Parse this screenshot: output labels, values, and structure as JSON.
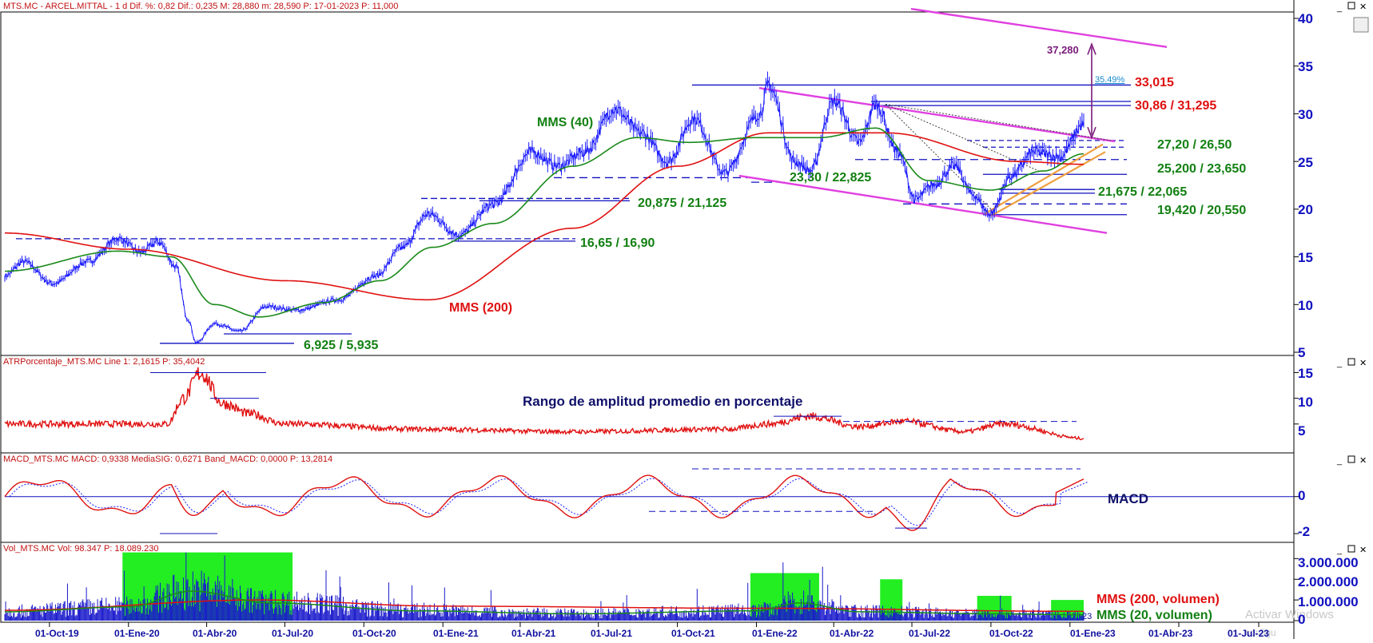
{
  "panels": {
    "price": {
      "header": "MTS.MC - ARCEL.MITTAL -  1 d  Dif. %: 0,82  Dif.: 0,235  M: 28,880  m: 28,590  P: 17-01-2023  P: 11,000",
      "y_ticks": [
        "40",
        "35",
        "30",
        "25",
        "20",
        "15",
        "10",
        "5"
      ],
      "labels": {
        "mms40": "MMS (40)",
        "mms200": "MMS (200)",
        "target_value": "37,280",
        "target_pct": "35.49%",
        "levels": [
          "33,015",
          "30,86 / 31,295",
          "27,20 / 26,50",
          "25,200 / 23,650",
          "21,675 / 22,065",
          "19,420 / 20,550",
          "23,30 / 22,825",
          "20,875 / 21,125",
          "16,65 / 16,90",
          "6,925 / 5,935"
        ]
      }
    },
    "atr": {
      "header": "ATRPorcentaje_MTS.MC  Line 1: 2,1615  P: 35,4042",
      "y_ticks": [
        "15",
        "10",
        "5"
      ],
      "title": "Rango de amplitud promedio en porcentaje"
    },
    "macd": {
      "header": "MACD_MTS.MC  MACD: 0,9338  MediaSIG: 0,6271  Band_MACD: 0,0000  P: 13,2814",
      "y_ticks": [
        "0",
        "-2"
      ],
      "title": "MACD"
    },
    "volume": {
      "header": "Vol_MTS.MC  Vol: 98.347  P: 18.089.230",
      "y_ticks": [
        "3.000.000",
        "2.000.000",
        "1.000.000",
        "0"
      ],
      "legend_200": "MMS (200, volumen)",
      "legend_20": "MMS (20, volumen)",
      "corner_text": "23"
    }
  },
  "x_ticks": [
    "01-Oct-19",
    "01-Ene-20",
    "01-Abr-20",
    "01-Jul-20",
    "01-Oct-20",
    "01-Ene-21",
    "01-Abr-21",
    "01-Jul-21",
    "01-Oct-21",
    "01-Ene-22",
    "01-Abr-22",
    "01-Jul-22",
    "01-Oct-22",
    "01-Ene-23",
    "01-Abr-23",
    "01-Jul-23"
  ],
  "watermark": {
    "line1": "Activar Windows",
    "line2": "configu"
  },
  "colors": {
    "price": "#1a1aff",
    "mms40": "#1a8a1a",
    "mms200": "#e01010",
    "channel": "#e040e0",
    "support": "#1010c0",
    "green_label": "#128012",
    "red_label": "#e01010",
    "volume_highlight": "#22ee22"
  },
  "chart_data": {
    "type": "line",
    "title": "",
    "series": [
      {
        "name": "MMS (40)",
        "values": []
      },
      {
        "name": "MMS (200)",
        "values": []
      }
    ],
    "price_anchors": [
      {
        "date": "2019-08-10",
        "value": 13.0
      },
      {
        "date": "2019-09-01",
        "value": 14.5
      },
      {
        "date": "2019-10-05",
        "value": 12.2
      },
      {
        "date": "2019-11-15",
        "value": 14.5
      },
      {
        "date": "2019-12-20",
        "value": 16.9
      },
      {
        "date": "2020-01-15",
        "value": 15.5
      },
      {
        "date": "2020-02-05",
        "value": 16.6
      },
      {
        "date": "2020-02-25",
        "value": 14.0
      },
      {
        "date": "2020-03-10",
        "value": 8.5
      },
      {
        "date": "2020-03-20",
        "value": 6.0
      },
      {
        "date": "2020-04-10",
        "value": 8.0
      },
      {
        "date": "2020-05-10",
        "value": 7.2
      },
      {
        "date": "2020-06-10",
        "value": 9.8
      },
      {
        "date": "2020-07-15",
        "value": 9.4
      },
      {
        "date": "2020-09-01",
        "value": 10.5
      },
      {
        "date": "2020-10-15",
        "value": 13.0
      },
      {
        "date": "2020-11-15",
        "value": 16.0
      },
      {
        "date": "2020-12-15",
        "value": 19.5
      },
      {
        "date": "2021-01-20",
        "value": 17.3
      },
      {
        "date": "2021-03-01",
        "value": 20.5
      },
      {
        "date": "2021-04-15",
        "value": 26.0
      },
      {
        "date": "2021-05-15",
        "value": 24.5
      },
      {
        "date": "2021-06-15",
        "value": 26.0
      },
      {
        "date": "2021-07-20",
        "value": 30.5
      },
      {
        "date": "2021-08-20",
        "value": 28.0
      },
      {
        "date": "2021-09-20",
        "value": 25.0
      },
      {
        "date": "2021-10-20",
        "value": 29.5
      },
      {
        "date": "2021-11-25",
        "value": 23.8
      },
      {
        "date": "2022-01-05",
        "value": 30.0
      },
      {
        "date": "2022-01-15",
        "value": 33.0
      },
      {
        "date": "2022-02-15",
        "value": 25.0
      },
      {
        "date": "2022-03-05",
        "value": 24.0
      },
      {
        "date": "2022-04-01",
        "value": 31.3
      },
      {
        "date": "2022-05-01",
        "value": 27.0
      },
      {
        "date": "2022-05-20",
        "value": 31.0
      },
      {
        "date": "2022-06-15",
        "value": 26.0
      },
      {
        "date": "2022-07-05",
        "value": 21.0
      },
      {
        "date": "2022-07-25",
        "value": 22.5
      },
      {
        "date": "2022-08-20",
        "value": 24.5
      },
      {
        "date": "2022-09-10",
        "value": 21.5
      },
      {
        "date": "2022-09-30",
        "value": 19.5
      },
      {
        "date": "2022-10-25",
        "value": 23.5
      },
      {
        "date": "2022-11-20",
        "value": 26.0
      },
      {
        "date": "2022-12-20",
        "value": 25.5
      },
      {
        "date": "2023-01-17",
        "value": 28.9
      }
    ],
    "mms40_anchors": [
      {
        "date": "2019-08-10",
        "value": 13.5
      },
      {
        "date": "2019-12-20",
        "value": 15.6
      },
      {
        "date": "2020-02-20",
        "value": 15.0
      },
      {
        "date": "2020-04-10",
        "value": 10.0
      },
      {
        "date": "2020-06-01",
        "value": 8.7
      },
      {
        "date": "2020-08-15",
        "value": 10.2
      },
      {
        "date": "2020-10-20",
        "value": 12.5
      },
      {
        "date": "2020-12-20",
        "value": 16.0
      },
      {
        "date": "2021-03-01",
        "value": 18.5
      },
      {
        "date": "2021-06-01",
        "value": 24.5
      },
      {
        "date": "2021-08-15",
        "value": 27.5
      },
      {
        "date": "2021-10-15",
        "value": 27.0
      },
      {
        "date": "2022-01-01",
        "value": 27.5
      },
      {
        "date": "2022-03-15",
        "value": 27.5
      },
      {
        "date": "2022-05-20",
        "value": 28.5
      },
      {
        "date": "2022-07-20",
        "value": 23.0
      },
      {
        "date": "2022-10-01",
        "value": 22.0
      },
      {
        "date": "2022-12-01",
        "value": 24.0
      },
      {
        "date": "2023-01-17",
        "value": 25.8
      }
    ],
    "mms200_anchors": [
      {
        "date": "2019-08-10",
        "value": 17.5
      },
      {
        "date": "2020-01-01",
        "value": 15.8
      },
      {
        "date": "2020-07-01",
        "value": 12.5
      },
      {
        "date": "2020-12-15",
        "value": 10.5
      },
      {
        "date": "2021-06-01",
        "value": 18.0
      },
      {
        "date": "2021-10-01",
        "value": 24.5
      },
      {
        "date": "2022-01-15",
        "value": 28.0
      },
      {
        "date": "2022-06-01",
        "value": 28.0
      },
      {
        "date": "2022-11-01",
        "value": 25.0
      },
      {
        "date": "2023-01-17",
        "value": 24.7
      }
    ],
    "levels": [
      {
        "label": "33,015",
        "values": [
          33.015
        ]
      },
      {
        "label": "30,86 / 31,295",
        "values": [
          30.86,
          31.295
        ]
      },
      {
        "label": "27,20 / 26,50",
        "values": [
          27.2,
          26.5
        ]
      },
      {
        "label": "25,200 / 23,650",
        "values": [
          25.2,
          23.65
        ]
      },
      {
        "label": "21,675 / 22,065",
        "values": [
          21.675,
          22.065
        ]
      },
      {
        "label": "19,420 / 20,550",
        "values": [
          19.42,
          20.55
        ]
      },
      {
        "label": "23,30 / 22,825",
        "values": [
          23.3,
          22.825
        ]
      },
      {
        "label": "20,875 / 21,125",
        "values": [
          20.875,
          21.125
        ]
      },
      {
        "label": "16,65 / 16,90",
        "values": [
          16.65,
          16.9
        ]
      },
      {
        "label": "6,925 / 5,935",
        "values": [
          6.925,
          5.935
        ]
      }
    ],
    "ylim": [
      5,
      40
    ],
    "atr_ylim": [
      0,
      16
    ],
    "macd_ylim": [
      -2.3,
      1.8
    ],
    "volume_ylim": [
      0,
      3400000
    ],
    "volume_highlights": [
      {
        "from": "2019-12-25",
        "to": "2020-07-10",
        "level": 3300000
      },
      {
        "from": "2021-12-25",
        "to": "2022-03-15",
        "level": 2300000
      },
      {
        "from": "2022-05-25",
        "to": "2022-06-20",
        "level": 2000000
      },
      {
        "from": "2022-09-15",
        "to": "2022-10-25",
        "level": 1200000
      },
      {
        "from": "2022-12-10",
        "to": "2023-01-17",
        "level": 1000000
      }
    ]
  }
}
